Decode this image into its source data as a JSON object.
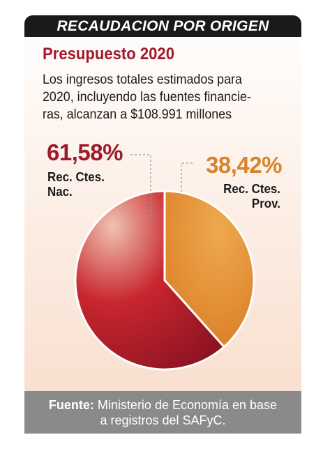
{
  "header": {
    "title": "RECAUDACION POR ORIGEN"
  },
  "chart_data": {
    "type": "pie",
    "title": "Presupuesto 2020",
    "subtitle": "Los ingresos totales estimados para 2020, incluyendo las fuentes financie-ras, alcanzan a $108.991 millones",
    "slices": [
      {
        "name": "Rec. Ctes. Nac.",
        "value": 61.58,
        "value_label": "61,58%",
        "color": "#b8202c"
      },
      {
        "name": "Rec. Ctes. Prov.",
        "value": 38.42,
        "value_label": "38,42%",
        "color": "#e38d2e"
      }
    ]
  },
  "text": {
    "title": "Presupuesto 2020",
    "desc_line1": "Los ingresos totales estimados para",
    "desc_line2": "2020, incluyendo las fuentes financie-",
    "desc_line3": "ras, alcanzan a $108.991 millones",
    "nac_pct": "61,58%",
    "nac_label_1": "Rec. Ctes.",
    "nac_label_2": "Nac.",
    "prov_pct": "38,42%",
    "prov_label_1": "Rec. Ctes.",
    "prov_label_2": "Prov."
  },
  "footer": {
    "source_label": "Fuente:",
    "source_text_1": " Ministerio de Economía en base",
    "source_text_2": "a registros del SAFyC."
  }
}
